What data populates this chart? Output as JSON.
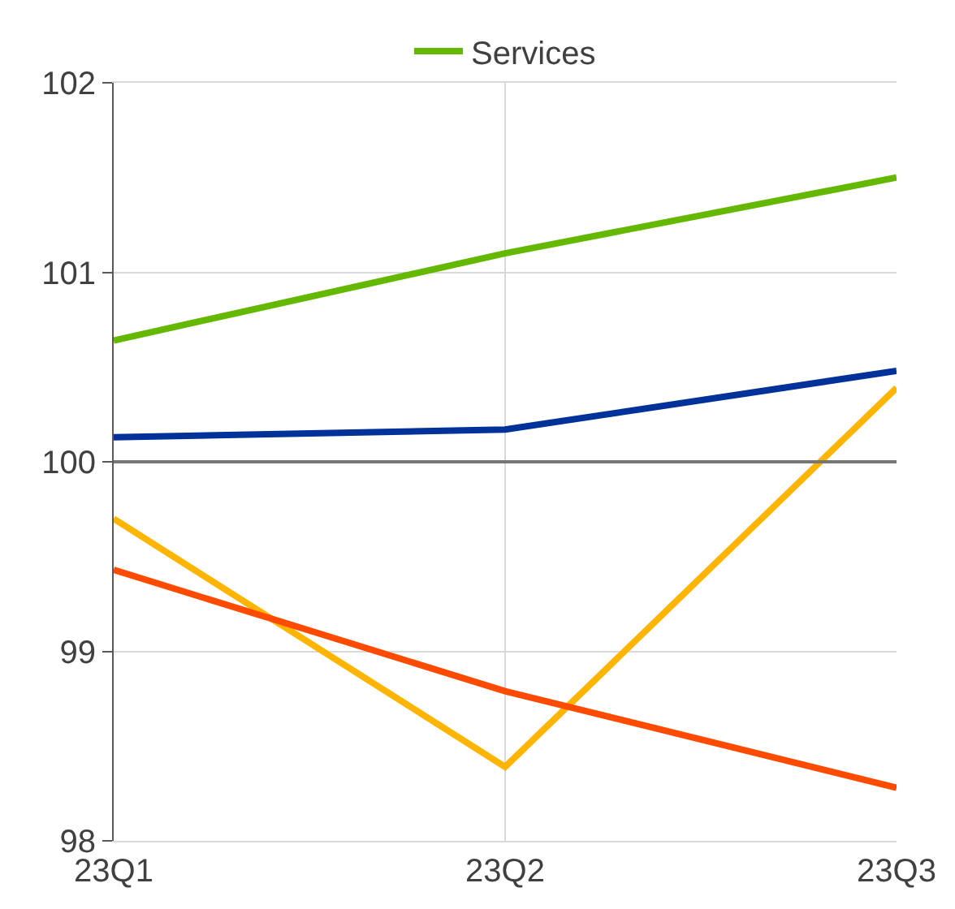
{
  "chart_data": {
    "type": "line",
    "categories": [
      "23Q1",
      "23Q2",
      "23Q3"
    ],
    "series": [
      {
        "name": "Services",
        "color": "#65b800",
        "values": [
          100.64,
          101.1,
          101.5
        ]
      },
      {
        "color": "#003299",
        "values": [
          100.13,
          100.17,
          100.48
        ]
      },
      {
        "color": "#ffb400",
        "values": [
          99.7,
          98.39,
          100.39
        ]
      },
      {
        "color": "#ff4b00",
        "values": [
          99.43,
          98.79,
          98.28
        ]
      }
    ],
    "ylim": [
      98,
      102
    ],
    "yticks": [
      98,
      99,
      100,
      101,
      102
    ],
    "ref_lines": [
      {
        "axis": "y",
        "value": 100,
        "color": "#767676"
      }
    ],
    "grid": true,
    "legend": "top",
    "marker": "none",
    "line_style": "solid"
  }
}
